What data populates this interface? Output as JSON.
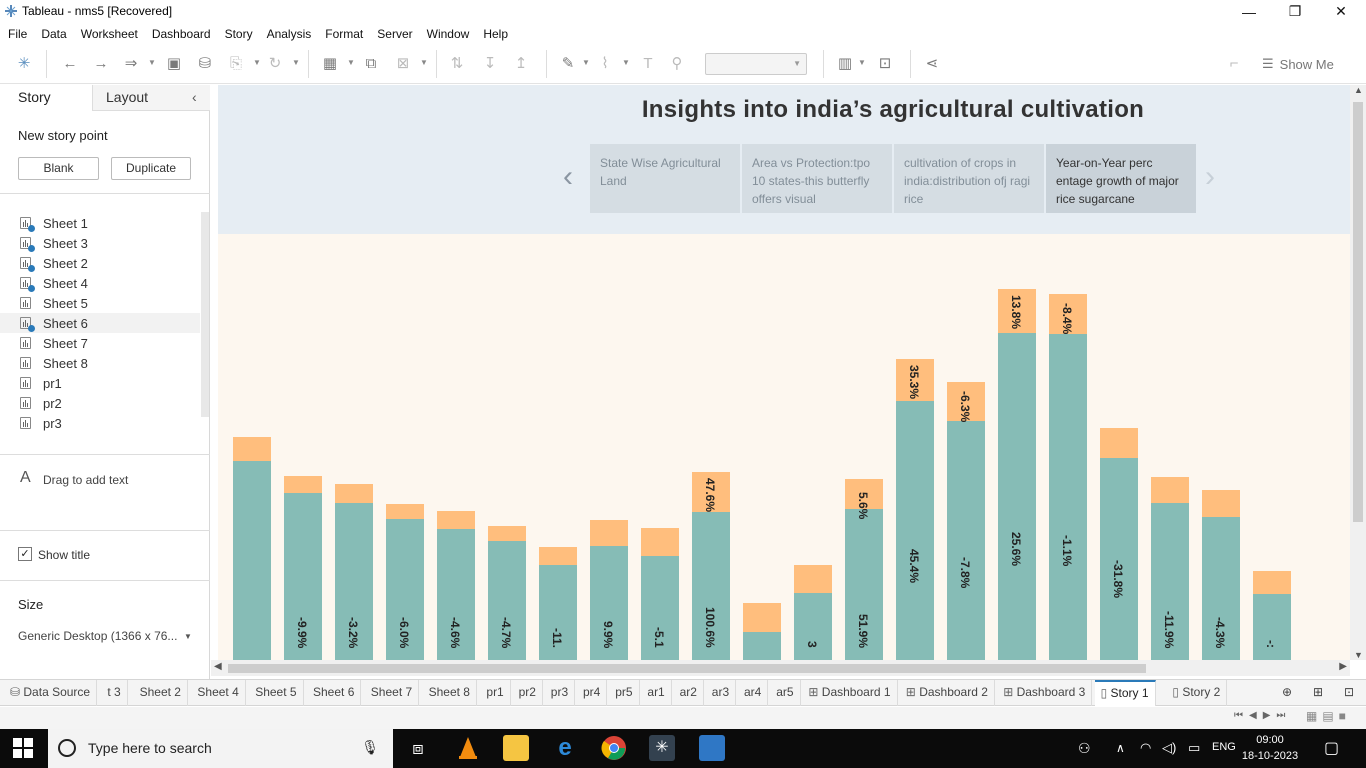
{
  "window": {
    "title": "Tableau - nms5 [Recovered]",
    "minimize": "—",
    "restore": "❐",
    "close": "✕"
  },
  "menu": [
    "File",
    "Data",
    "Worksheet",
    "Dashboard",
    "Story",
    "Analysis",
    "Format",
    "Server",
    "Window",
    "Help"
  ],
  "toolbar": {
    "show_me": "Show Me"
  },
  "left_pane": {
    "tabs": {
      "story": "Story",
      "layout": "Layout"
    },
    "new_story_point": "New story point",
    "blank": "Blank",
    "duplicate": "Duplicate",
    "sheets": [
      {
        "name": "Sheet 1",
        "used": true
      },
      {
        "name": "Sheet 3",
        "used": true
      },
      {
        "name": "Sheet 2",
        "used": true
      },
      {
        "name": "Sheet 4",
        "used": true
      },
      {
        "name": "Sheet 5",
        "used": false
      },
      {
        "name": "Sheet 6",
        "used": true
      },
      {
        "name": "Sheet 7",
        "used": false
      },
      {
        "name": "Sheet 8",
        "used": false
      },
      {
        "name": "pr1",
        "used": false
      },
      {
        "name": "pr2",
        "used": false
      },
      {
        "name": "pr3",
        "used": false
      }
    ],
    "drag_text": "Drag to add text",
    "show_title": "Show title",
    "size_label": "Size",
    "size_value": "Generic Desktop (1366 x 76..."
  },
  "story": {
    "title": "Insights into india’s agricultural cultivation",
    "points": [
      {
        "text": "State Wise Agricultural Land",
        "active": false
      },
      {
        "text": "Area vs Protection:tpo 10 states-this butterfly offers visual",
        "active": false
      },
      {
        "text": "cultivation of crops in india:distribution ofj ragi rice",
        "active": false
      },
      {
        "text": "Year-on-Year perc entage growth of major rice sugarcane",
        "active": true
      }
    ]
  },
  "colors": {
    "teal": "#86bcb6",
    "orange": "#ffbe7d",
    "chart_bg": "#fdf7ef",
    "story_bg": "#e6edf3"
  },
  "chart_data": {
    "type": "bar",
    "stacked": true,
    "ylim": [
      0,
      420
    ],
    "series": [
      {
        "name": "",
        "color": "#86bcb6",
        "values": [
          211,
          177,
          167,
          150,
          139,
          126,
          101,
          121,
          110,
          157,
          30,
          71,
          160,
          275,
          254,
          347,
          346,
          214,
          167,
          152,
          70
        ],
        "labels": [
          "",
          "-9.9%",
          "-3.2%",
          "-6.0%",
          "-4.6%",
          "-4.7%",
          "-11.",
          "9.9%",
          "-5.1",
          "100.6%",
          "",
          "3",
          "51.9%",
          "45.4%",
          "-7.8%",
          "25.6%",
          "-1.1%",
          "-31.8%",
          "-11.9%",
          "-4.3%",
          "-:"
        ]
      },
      {
        "name": "",
        "color": "#ffbe7d",
        "values": [
          26,
          18,
          20,
          16,
          19,
          16,
          19,
          27,
          30,
          42,
          31,
          30,
          32,
          44,
          41,
          46,
          42,
          32,
          27,
          28,
          24
        ],
        "labels": [
          "",
          "",
          "",
          "",
          "",
          "",
          "",
          "",
          "",
          "47.6%",
          "",
          "",
          "5.6%",
          "35.3%",
          "-6.3%",
          "13.8%",
          "-8.4%",
          "",
          "",
          "",
          ""
        ]
      }
    ]
  },
  "bottom_tabs": [
    {
      "label": "Data Source",
      "icon": "database-icon",
      "active": false
    },
    {
      "label": "t 3",
      "active": false
    },
    {
      "label": "Sheet 2",
      "active": false
    },
    {
      "label": "Sheet 4",
      "active": false
    },
    {
      "label": "Sheet 5",
      "active": false
    },
    {
      "label": "Sheet 6",
      "active": false
    },
    {
      "label": "Sheet 7",
      "active": false
    },
    {
      "label": "Sheet 8",
      "active": false
    },
    {
      "label": "pr1",
      "active": false
    },
    {
      "label": "pr2",
      "active": false
    },
    {
      "label": "pr3",
      "active": false
    },
    {
      "label": "pr4",
      "active": false
    },
    {
      "label": "pr5",
      "active": false
    },
    {
      "label": "ar1",
      "active": false
    },
    {
      "label": "ar2",
      "active": false
    },
    {
      "label": "ar3",
      "active": false
    },
    {
      "label": "ar4",
      "active": false
    },
    {
      "label": "ar5",
      "active": false
    },
    {
      "label": "Dashboard 1",
      "icon": "dashboard-icon",
      "active": false
    },
    {
      "label": "Dashboard 2",
      "icon": "dashboard-icon",
      "active": false
    },
    {
      "label": "Dashboard 3",
      "icon": "dashboard-icon",
      "active": false
    },
    {
      "label": "Story 1",
      "icon": "story-icon",
      "active": true
    },
    {
      "label": "Story 2",
      "icon": "story-icon",
      "active": false
    }
  ],
  "taskbar": {
    "search_placeholder": "Type here to search",
    "time": "09:00",
    "date": "18-10-2023",
    "lang": "ENG"
  }
}
